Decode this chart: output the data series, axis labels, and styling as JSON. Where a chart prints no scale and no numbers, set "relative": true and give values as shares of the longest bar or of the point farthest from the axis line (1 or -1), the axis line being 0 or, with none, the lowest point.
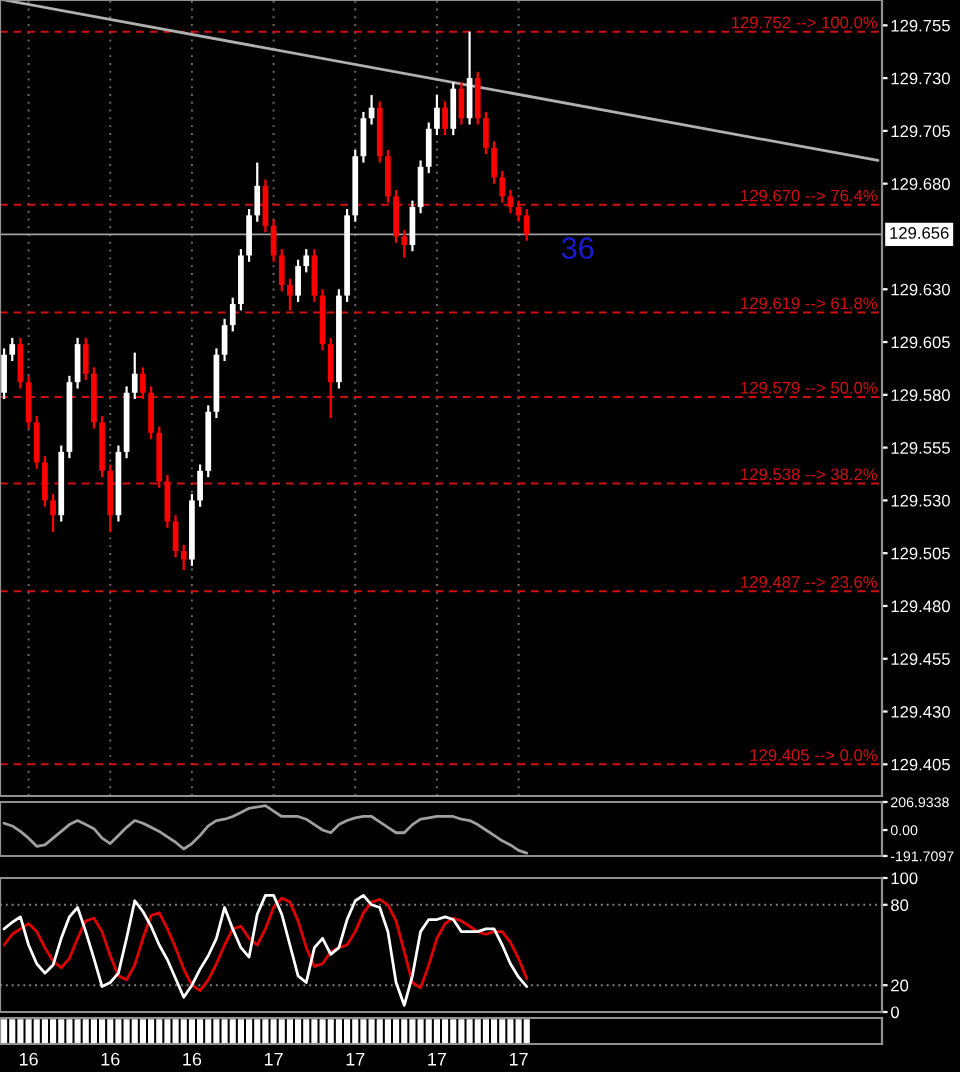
{
  "chart_data": [
    {
      "type": "candlestick",
      "categories": [
        null,
        null,
        null,
        "16",
        null,
        null,
        null,
        null,
        null,
        null,
        null,
        null,
        null,
        "16",
        null,
        null,
        null,
        null,
        null,
        null,
        null,
        null,
        null,
        "16",
        null,
        null,
        null,
        null,
        null,
        null,
        null,
        null,
        null,
        "17",
        null,
        null,
        null,
        null,
        null,
        null,
        null,
        null,
        null,
        "17",
        null,
        null,
        null,
        null,
        null,
        null,
        null,
        null,
        null,
        "17",
        null,
        null,
        null,
        null,
        null,
        null,
        null,
        null,
        null,
        "17",
        null,
        null,
        null,
        null,
        null,
        null,
        null,
        null,
        null,
        null,
        null,
        null,
        null,
        null,
        null,
        null,
        null,
        null,
        null,
        null,
        null,
        null,
        null,
        null,
        null,
        null,
        null,
        null,
        null,
        null,
        null,
        null,
        null,
        null,
        null,
        null,
        null,
        null,
        null,
        null,
        null,
        null,
        null,
        null
      ],
      "ohlc": [
        [
          129.581,
          129.602,
          129.578,
          129.599
        ],
        [
          129.599,
          129.607,
          129.596,
          129.604
        ],
        [
          129.604,
          129.607,
          129.583,
          129.586
        ],
        [
          129.586,
          129.589,
          129.564,
          129.567
        ],
        [
          129.567,
          129.57,
          129.545,
          129.548
        ],
        [
          129.548,
          129.551,
          129.527,
          129.53
        ],
        [
          129.53,
          129.533,
          129.515,
          129.523
        ],
        [
          129.523,
          129.556,
          129.52,
          129.553
        ],
        [
          129.553,
          129.589,
          129.55,
          129.586
        ],
        [
          129.586,
          129.607,
          129.583,
          129.604
        ],
        [
          129.604,
          129.607,
          129.587,
          129.59
        ],
        [
          129.59,
          129.593,
          129.564,
          129.567
        ],
        [
          129.567,
          129.57,
          129.541,
          129.544
        ],
        [
          129.544,
          129.547,
          129.515,
          129.523
        ],
        [
          129.523,
          129.556,
          129.52,
          129.553
        ],
        [
          129.553,
          129.584,
          129.55,
          129.581
        ],
        [
          129.581,
          129.6,
          129.578,
          129.59
        ],
        [
          129.59,
          129.593,
          129.578,
          129.581
        ],
        [
          129.581,
          129.584,
          129.559,
          129.562
        ],
        [
          129.562,
          129.565,
          129.536,
          129.539
        ],
        [
          129.539,
          129.542,
          129.517,
          129.52
        ],
        [
          129.52,
          129.523,
          129.503,
          129.506
        ],
        [
          129.506,
          129.509,
          129.497,
          129.502
        ],
        [
          129.502,
          129.533,
          129.499,
          129.53
        ],
        [
          129.53,
          129.547,
          129.527,
          129.544
        ],
        [
          129.544,
          129.575,
          129.541,
          129.572
        ],
        [
          129.572,
          129.602,
          129.569,
          129.599
        ],
        [
          129.599,
          129.616,
          129.596,
          129.613
        ],
        [
          129.613,
          129.626,
          129.61,
          129.623
        ],
        [
          129.623,
          129.649,
          129.62,
          129.646
        ],
        [
          129.646,
          129.668,
          129.643,
          129.665
        ],
        [
          129.665,
          129.69,
          129.662,
          129.679
        ],
        [
          129.679,
          129.682,
          129.657,
          129.66
        ],
        [
          129.66,
          129.663,
          129.643,
          129.646
        ],
        [
          129.646,
          129.649,
          129.629,
          129.632
        ],
        [
          129.632,
          129.635,
          129.62,
          129.627
        ],
        [
          129.627,
          129.644,
          129.624,
          129.641
        ],
        [
          129.641,
          129.649,
          129.638,
          129.646
        ],
        [
          129.646,
          129.649,
          129.624,
          129.627
        ],
        [
          129.627,
          129.63,
          129.601,
          129.604
        ],
        [
          129.604,
          129.607,
          129.569,
          129.586
        ],
        [
          129.586,
          129.63,
          129.583,
          129.627
        ],
        [
          129.627,
          129.668,
          129.624,
          129.665
        ],
        [
          129.665,
          129.696,
          129.662,
          129.693
        ],
        [
          129.693,
          129.714,
          129.69,
          129.711
        ],
        [
          129.711,
          129.722,
          129.708,
          129.716
        ],
        [
          129.716,
          129.719,
          129.69,
          129.693
        ],
        [
          129.693,
          129.696,
          129.671,
          129.674
        ],
        [
          129.674,
          129.677,
          129.652,
          129.655
        ],
        [
          129.655,
          129.658,
          129.645,
          129.651
        ],
        [
          129.651,
          129.672,
          129.648,
          129.669
        ],
        [
          129.669,
          129.691,
          129.666,
          129.688
        ],
        [
          129.688,
          129.709,
          129.685,
          129.706
        ],
        [
          129.706,
          129.722,
          129.703,
          129.716
        ],
        [
          129.716,
          129.719,
          129.703,
          129.706
        ],
        [
          129.706,
          129.728,
          129.703,
          129.725
        ],
        [
          129.725,
          129.728,
          129.708,
          129.711
        ],
        [
          129.711,
          129.752,
          129.708,
          129.73
        ],
        [
          129.73,
          129.733,
          129.708,
          129.711
        ],
        [
          129.711,
          129.714,
          129.694,
          129.697
        ],
        [
          129.697,
          129.7,
          129.68,
          129.683
        ],
        [
          129.683,
          129.686,
          129.671,
          129.674
        ],
        [
          129.674,
          129.677,
          129.666,
          129.669
        ],
        [
          129.669,
          129.672,
          129.662,
          129.665
        ],
        [
          129.665,
          129.668,
          129.653,
          129.656
        ],
        null,
        null,
        null,
        null,
        null,
        null,
        null,
        null,
        null,
        null,
        null,
        null,
        null,
        null,
        null,
        null,
        null,
        null,
        null,
        null,
        null,
        null,
        null,
        null,
        null,
        null,
        null,
        null,
        null,
        null,
        null,
        null,
        null,
        null,
        null,
        null,
        null,
        null,
        null,
        null,
        null,
        null,
        null
      ],
      "colors": [
        "#ffffff",
        "#ffffff",
        "#ff0000",
        "#ff0000",
        "#ff0000",
        "#ff0000",
        "#ff0000",
        "#ffffff",
        "#ffffff",
        "#ffffff",
        "#ff0000",
        "#ff0000",
        "#ff0000",
        "#ff0000",
        "#ffffff",
        "#ffffff",
        "#ffffff",
        "#ff0000",
        "#ff0000",
        "#ff0000",
        "#ff0000",
        "#ff0000",
        "#ff0000",
        "#ffffff",
        "#ffffff",
        "#ffffff",
        "#ffffff",
        "#ffffff",
        "#ffffff",
        "#ffffff",
        "#ffffff",
        "#ffffff",
        "#ff0000",
        "#ff0000",
        "#ff0000",
        "#ff0000",
        "#ffffff",
        "#ffffff",
        "#ff0000",
        "#ff0000",
        "#ff0000",
        "#ffffff",
        "#ffffff",
        "#ffffff",
        "#ffffff",
        "#ffffff",
        "#ff0000",
        "#ff0000",
        "#ff0000",
        "#ff0000",
        "#ffffff",
        "#ffffff",
        "#ffffff",
        "#ffffff",
        "#ff0000",
        "#ffffff",
        "#ff0000",
        "#ffffff",
        "#ff0000",
        "#ff0000",
        "#ff0000",
        "#ff0000",
        "#ff0000",
        "#ff0000",
        "#ff0000",
        null,
        null,
        null,
        null,
        null,
        null,
        null,
        null,
        null,
        null,
        null,
        null,
        null,
        null,
        null,
        null,
        null,
        null,
        null,
        null,
        null,
        null,
        null,
        null,
        null,
        null,
        null,
        null,
        null,
        null,
        null,
        null,
        null,
        null,
        null,
        null,
        null,
        null,
        null,
        null,
        null,
        null,
        null
      ],
      "series": [
        {
          "type": "line",
          "color": "#b0b0b0",
          "values": [
            129.767,
            null,
            null,
            null,
            null,
            null,
            null,
            null,
            null,
            null,
            null,
            null,
            null,
            null,
            null,
            null,
            null,
            null,
            null,
            null,
            null,
            null,
            null,
            null,
            null,
            null,
            null,
            null,
            null,
            null,
            null,
            null,
            null,
            null,
            null,
            null,
            null,
            null,
            null,
            null,
            null,
            null,
            null,
            null,
            null,
            null,
            null,
            null,
            null,
            null,
            null,
            null,
            null,
            null,
            null,
            null,
            null,
            null,
            null,
            null,
            null,
            null,
            null,
            null,
            null,
            null,
            null,
            null,
            null,
            null,
            null,
            null,
            null,
            null,
            null,
            null,
            null,
            null,
            null,
            null,
            null,
            null,
            null,
            null,
            null,
            null,
            null,
            null,
            null,
            null,
            null,
            null,
            null,
            null,
            null,
            null,
            null,
            null,
            null,
            null,
            null,
            null,
            null,
            null,
            null,
            null,
            null,
            129.691
          ]
        }
      ],
      "ylim": [
        129.39,
        129.767
      ],
      "yticks": [
        {
          "value": 129.405,
          "label": "129.405"
        },
        {
          "value": 129.43,
          "label": "129.430"
        },
        {
          "value": 129.455,
          "label": "129.455"
        },
        {
          "value": 129.48,
          "label": "129.480"
        },
        {
          "value": 129.505,
          "label": "129.505"
        },
        {
          "value": 129.53,
          "label": "129.530"
        },
        {
          "value": 129.555,
          "label": "129.555"
        },
        {
          "value": 129.58,
          "label": "129.580"
        },
        {
          "value": 129.605,
          "label": "129.605"
        },
        {
          "value": 129.63,
          "label": "129.630"
        },
        {
          "value": 129.68,
          "label": "129.680"
        },
        {
          "value": 129.705,
          "label": "129.705"
        },
        {
          "value": 129.73,
          "label": "129.730"
        },
        {
          "value": 129.755,
          "label": "129.755"
        }
      ],
      "ref_lines": [
        {
          "axis": "y",
          "value": 129.752,
          "label": "129.752 --> 100.0%",
          "color": "#d01010",
          "line_style": "dashed"
        },
        {
          "axis": "y",
          "value": 129.67,
          "label": "129.670 --> 76.4%",
          "color": "#d01010",
          "line_style": "dashed"
        },
        {
          "axis": "y",
          "value": 129.619,
          "label": "129.619 --> 61.8%",
          "color": "#d01010",
          "line_style": "dashed"
        },
        {
          "axis": "y",
          "value": 129.579,
          "label": "129.579 --> 50.0%",
          "color": "#d01010",
          "line_style": "dashed"
        },
        {
          "axis": "y",
          "value": 129.538,
          "label": "129.538 --> 38.2%",
          "color": "#d01010",
          "line_style": "dashed"
        },
        {
          "axis": "y",
          "value": 129.487,
          "label": "129.487 --> 23.6%",
          "color": "#d01010",
          "line_style": "dashed"
        },
        {
          "axis": "y",
          "value": 129.405,
          "label": "129.405 --> 0.0%",
          "color": "#d01010",
          "line_style": "dashed"
        },
        {
          "axis": "y",
          "value": 129.656,
          "label": "129.656",
          "color": "#a0a0a0",
          "line_style": "solid"
        }
      ],
      "annotations": [
        "36"
      ],
      "grid": "x",
      "tick_labels": "y"
    },
    {
      "type": "line",
      "categories": [
        null,
        null,
        null,
        "16",
        null,
        null,
        null,
        null,
        null,
        null,
        null,
        null,
        null,
        "16",
        null,
        null,
        null,
        null,
        null,
        null,
        null,
        null,
        null,
        "16",
        null,
        null,
        null,
        null,
        null,
        null,
        null,
        null,
        null,
        "17",
        null,
        null,
        null,
        null,
        null,
        null,
        null,
        null,
        null,
        "17",
        null,
        null,
        null,
        null,
        null,
        null,
        null,
        null,
        null,
        "17",
        null,
        null,
        null,
        null,
        null,
        null,
        null,
        null,
        null,
        "17",
        null,
        null,
        null,
        null,
        null,
        null,
        null,
        null,
        null,
        null,
        null,
        null,
        null,
        null,
        null,
        null,
        null,
        null,
        null,
        null,
        null,
        null,
        null,
        null,
        null,
        null,
        null,
        null,
        null,
        null,
        null,
        null,
        null,
        null,
        null,
        null,
        null,
        null,
        null,
        null,
        null,
        null,
        null,
        null
      ],
      "series": [
        {
          "color": "#a0a0a0",
          "values": [
            50,
            30,
            -10,
            -60,
            -120,
            -110,
            -60,
            -10,
            40,
            70,
            40,
            10,
            -60,
            -100,
            -40,
            20,
            70,
            50,
            20,
            -10,
            -50,
            -90,
            -140,
            -100,
            -40,
            30,
            70,
            80,
            100,
            130,
            160,
            170,
            180,
            140,
            100,
            100,
            100,
            80,
            40,
            0,
            -20,
            40,
            70,
            90,
            100,
            100,
            60,
            20,
            -20,
            -20,
            40,
            80,
            90,
            100,
            100,
            100,
            80,
            70,
            40,
            0,
            -40,
            -80,
            -110,
            -150,
            -170,
            null,
            null,
            null,
            null,
            null,
            null,
            null,
            null,
            null,
            null,
            null,
            null,
            null,
            null,
            null,
            null,
            null,
            null,
            null,
            null,
            null,
            null,
            null,
            null,
            null,
            null,
            null,
            null,
            null,
            null,
            null,
            null,
            null,
            null,
            null,
            null,
            null,
            null,
            null,
            null,
            null,
            null,
            null
          ]
        }
      ],
      "ylim": [
        -191.7097,
        206.9338
      ],
      "yticks": [
        {
          "value": -191.7097,
          "label": "-191.7097"
        },
        {
          "value": 0,
          "label": "0.00"
        },
        {
          "value": 206.9338,
          "label": "206.9338"
        }
      ],
      "tick_labels": "y"
    },
    {
      "type": "line",
      "categories": [
        null,
        null,
        null,
        "16",
        null,
        null,
        null,
        null,
        null,
        null,
        null,
        null,
        null,
        "16",
        null,
        null,
        null,
        null,
        null,
        null,
        null,
        null,
        null,
        "16",
        null,
        null,
        null,
        null,
        null,
        null,
        null,
        null,
        null,
        "17",
        null,
        null,
        null,
        null,
        null,
        null,
        null,
        null,
        null,
        "17",
        null,
        null,
        null,
        null,
        null,
        null,
        null,
        null,
        null,
        "17",
        null,
        null,
        null,
        null,
        null,
        null,
        null,
        null,
        null,
        "17",
        null,
        null,
        null,
        null,
        null,
        null,
        null,
        null,
        null,
        null,
        null,
        null,
        null,
        null,
        null,
        null,
        null,
        null,
        null,
        null,
        null,
        null,
        null,
        null,
        null,
        null,
        null,
        null,
        null,
        null,
        null,
        null,
        null,
        null,
        null,
        null,
        null,
        null,
        null,
        null,
        null,
        null,
        null,
        null
      ],
      "series": [
        {
          "color": "#e00000",
          "values": [
            50,
            58,
            62,
            66,
            60,
            48,
            38,
            33,
            40,
            55,
            68,
            70,
            60,
            42,
            27,
            24,
            35,
            55,
            72,
            74,
            62,
            48,
            32,
            20,
            16,
            24,
            36,
            50,
            62,
            64,
            55,
            50,
            62,
            78,
            85,
            82,
            68,
            48,
            34,
            36,
            45,
            48,
            50,
            60,
            74,
            82,
            84,
            80,
            68,
            45,
            22,
            18,
            35,
            55,
            66,
            70,
            68,
            64,
            60,
            58,
            60,
            60,
            52,
            40,
            25,
            null,
            null,
            null,
            null,
            null,
            null,
            null,
            null,
            null,
            null,
            null,
            null,
            null,
            null,
            null,
            null,
            null,
            null,
            null,
            null,
            null,
            null,
            null,
            null,
            null,
            null,
            null,
            null,
            null,
            null,
            null,
            null,
            null,
            null,
            null,
            null,
            null,
            null,
            null,
            null,
            null,
            null,
            null
          ]
        },
        {
          "color": "#ffffff",
          "values": [
            62,
            67,
            71,
            50,
            36,
            29,
            35,
            55,
            71,
            78,
            60,
            40,
            19,
            22,
            29,
            55,
            83,
            75,
            64,
            50,
            39,
            25,
            11,
            20,
            32,
            42,
            55,
            78,
            62,
            48,
            41,
            73,
            87,
            87,
            73,
            50,
            27,
            22,
            48,
            55,
            43,
            48,
            69,
            83,
            87,
            80,
            78,
            60,
            22,
            5,
            27,
            60,
            69,
            69,
            71,
            69,
            60,
            60,
            60,
            62,
            62,
            50,
            36,
            26,
            19,
            null,
            null,
            null,
            null,
            null,
            null,
            null,
            null,
            null,
            null,
            null,
            null,
            null,
            null,
            null,
            null,
            null,
            null,
            null,
            null,
            null,
            null,
            null,
            null,
            null,
            null,
            null,
            null,
            null,
            null,
            null,
            null,
            null,
            null,
            null,
            null,
            null,
            null,
            null,
            null,
            null,
            null,
            null
          ]
        }
      ],
      "ylim": [
        0,
        100
      ],
      "yticks": [
        0,
        20,
        80,
        100
      ],
      "ref_lines": [
        {
          "axis": "y",
          "value": 20,
          "color": "#808080",
          "line_style": "dotted"
        },
        {
          "axis": "y",
          "value": 80,
          "color": "#808080",
          "line_style": "dotted"
        }
      ],
      "tick_labels": "y"
    },
    {
      "type": "bar",
      "categories": [
        null,
        null,
        null,
        "16",
        null,
        null,
        null,
        null,
        null,
        null,
        null,
        null,
        null,
        "16",
        null,
        null,
        null,
        null,
        null,
        null,
        null,
        null,
        null,
        "16",
        null,
        null,
        null,
        null,
        null,
        null,
        null,
        null,
        null,
        "17",
        null,
        null,
        null,
        null,
        null,
        null,
        null,
        null,
        null,
        "17",
        null,
        null,
        null,
        null,
        null,
        null,
        null,
        null,
        null,
        "17",
        null,
        null,
        null,
        null,
        null,
        null,
        null,
        null,
        null,
        "17",
        null,
        null,
        null,
        null,
        null,
        null,
        null,
        null,
        null,
        null,
        null,
        null,
        null,
        null,
        null,
        null,
        null,
        null,
        null,
        null,
        null,
        null,
        null,
        null,
        null,
        null,
        null,
        null,
        null,
        null,
        null,
        null,
        null,
        null,
        null,
        null,
        null,
        null,
        null,
        null,
        null,
        null,
        null,
        null
      ],
      "values": [
        1,
        1,
        1,
        1,
        1,
        1,
        1,
        1,
        1,
        1,
        1,
        1,
        1,
        1,
        1,
        1,
        1,
        1,
        1,
        1,
        1,
        1,
        1,
        1,
        1,
        1,
        1,
        1,
        1,
        1,
        1,
        1,
        1,
        1,
        1,
        1,
        1,
        1,
        1,
        1,
        1,
        1,
        1,
        1,
        1,
        1,
        1,
        1,
        1,
        1,
        1,
        1,
        1,
        1,
        1,
        1,
        1,
        1,
        1,
        1,
        1,
        1,
        1,
        1,
        1,
        null,
        null,
        null,
        null,
        null,
        null,
        null,
        null,
        null,
        null,
        null,
        null,
        null,
        null,
        null,
        null,
        null,
        null,
        null,
        null,
        null,
        null,
        null,
        null,
        null,
        null,
        null,
        null,
        null,
        null,
        null,
        null,
        null,
        null,
        null,
        null,
        null,
        null,
        null,
        null,
        null,
        null,
        null
      ],
      "color": "#ffffff",
      "relative": true
    }
  ]
}
